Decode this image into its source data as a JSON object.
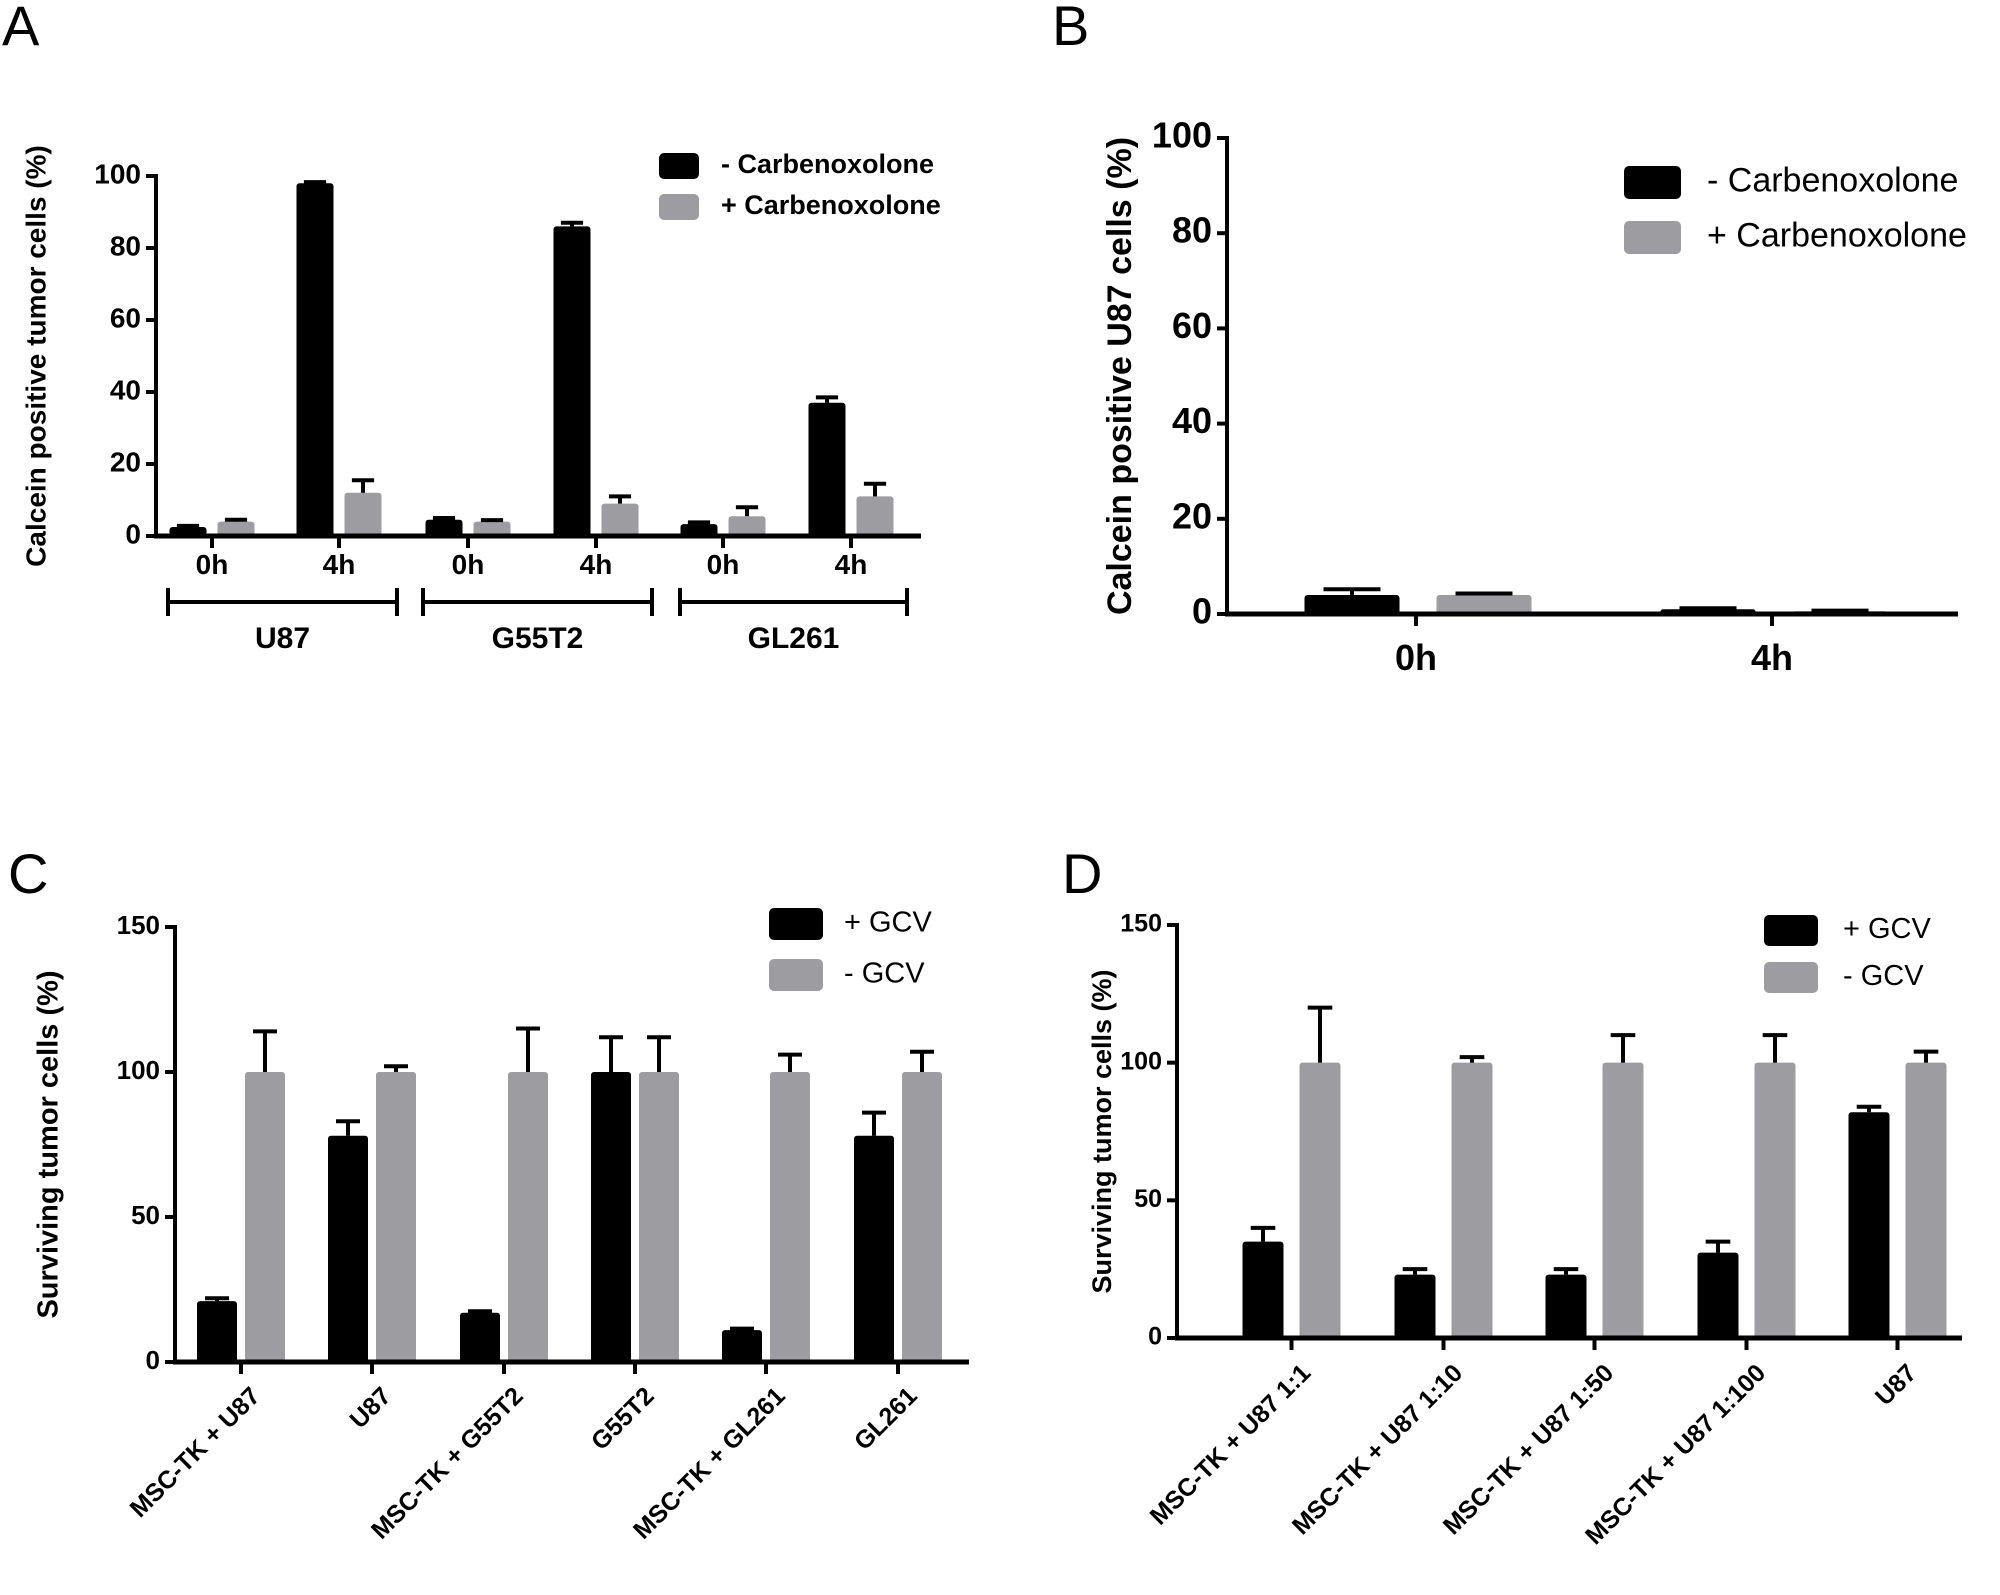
{
  "panel_labels": [
    "A",
    "B",
    "C",
    "D"
  ],
  "colors": {
    "black_series": "#000000",
    "gray_series": "#9d9da1",
    "axis": "#000000"
  },
  "chart_data": [
    {
      "panel": "A",
      "type": "bar",
      "ylabel": "Calcein positive tumor cells (%)",
      "ylim": [
        0,
        100
      ],
      "yticks": [
        "0",
        "20",
        "40",
        "60",
        "80",
        "100"
      ],
      "categories": [
        "0h",
        "4h",
        "0h",
        "4h",
        "0h",
        "4h"
      ],
      "groups": [
        {
          "label": "U87",
          "categories": [
            0,
            1
          ]
        },
        {
          "label": "G55T2",
          "categories": [
            2,
            3
          ]
        },
        {
          "label": "GL261",
          "categories": [
            4,
            5
          ]
        }
      ],
      "legend_position": "top-right",
      "series": [
        {
          "name": "- Carbenoxolone",
          "color": "#000000",
          "values": [
            2.5,
            98,
            4.5,
            86,
            3.3,
            37
          ],
          "errors": [
            0.3,
            0.3,
            0.5,
            1,
            0.5,
            1.5
          ]
        },
        {
          "name": "+ Carbenoxolone",
          "color": "#9d9da1",
          "values": [
            4,
            12,
            4,
            9,
            5.5,
            11
          ],
          "errors": [
            0.5,
            3.5,
            0.4,
            2,
            2.5,
            3.5
          ]
        }
      ]
    },
    {
      "panel": "B",
      "type": "bar",
      "ylabel": "Calcein positive U87 cells (%)",
      "ylim": [
        0,
        100
      ],
      "yticks": [
        "0",
        "20",
        "40",
        "60",
        "80",
        "100"
      ],
      "categories": [
        "0h",
        "4h"
      ],
      "legend_position": "top-right",
      "series": [
        {
          "name": "- Carbenoxolone",
          "color": "#000000",
          "values": [
            4,
            1
          ],
          "errors": [
            1.2,
            0.2
          ]
        },
        {
          "name": "+ Carbenoxolone",
          "color": "#9d9da1",
          "values": [
            4,
            0.6
          ],
          "errors": [
            0.3,
            0.1
          ]
        }
      ]
    },
    {
      "panel": "C",
      "type": "bar",
      "ylabel": "Surviving tumor cells (%)",
      "ylim": [
        0,
        150
      ],
      "yticks": [
        "0",
        "50",
        "100",
        "150"
      ],
      "categories": [
        "MSC-TK + U87",
        "U87",
        "MSC-TK + G55T2",
        "G55T2",
        "MSC-TK + GL261",
        "GL261"
      ],
      "legend_position": "top-right",
      "series": [
        {
          "name": "+ GCV",
          "color": "#000000",
          "values": [
            21,
            78,
            17,
            100,
            11,
            78
          ],
          "errors": [
            1,
            5,
            0.5,
            12,
            0.5,
            8
          ]
        },
        {
          "name": "- GCV",
          "color": "#9d9da1",
          "values": [
            100,
            100,
            100,
            100,
            100,
            100
          ],
          "errors": [
            14,
            2,
            15,
            12,
            6,
            7
          ]
        }
      ]
    },
    {
      "panel": "D",
      "type": "bar",
      "ylabel": "Surviving tumor cells (%)",
      "ylim": [
        0,
        150
      ],
      "yticks": [
        "0",
        "50",
        "100",
        "150"
      ],
      "categories": [
        "MSC-TK + U87 1:1",
        "MSC-TK + U87 1:10",
        "MSC-TK + U87 1:50",
        "MSC-TK + U87 1:100",
        "U87"
      ],
      "legend_position": "top-right",
      "series": [
        {
          "name": "+ GCV",
          "color": "#000000",
          "values": [
            35,
            23,
            23,
            31,
            82
          ],
          "errors": [
            5,
            2,
            2,
            4,
            2
          ]
        },
        {
          "name": "- GCV",
          "color": "#9d9da1",
          "values": [
            100,
            100,
            100,
            100,
            100
          ],
          "errors": [
            20,
            2,
            10,
            10,
            4
          ]
        }
      ]
    }
  ]
}
